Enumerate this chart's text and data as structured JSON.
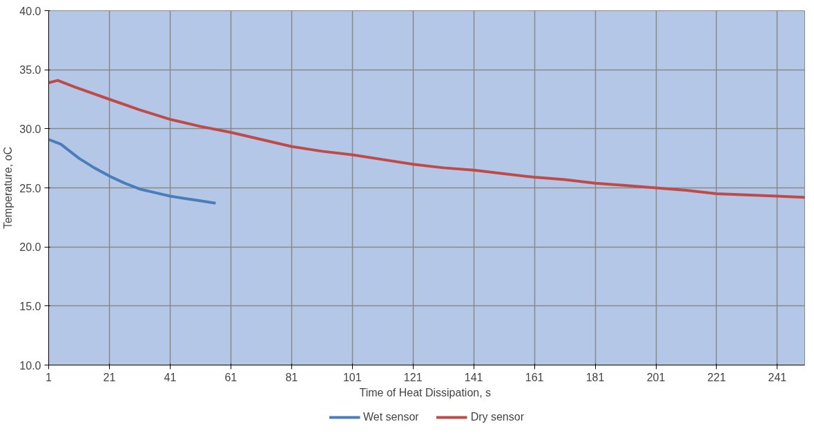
{
  "chart_data": {
    "type": "line",
    "xlabel": "Time of Heat Dissipation,  s",
    "ylabel": "Temperature, oC",
    "xlim": [
      1,
      250
    ],
    "xticks": [
      1,
      21,
      41,
      61,
      81,
      101,
      121,
      141,
      161,
      181,
      201,
      221,
      241
    ],
    "ylim": [
      10,
      40
    ],
    "yticks": [
      {
        "value": 10,
        "label": "10.0"
      },
      {
        "value": 15,
        "label": "15.0"
      },
      {
        "value": 20,
        "label": "20.0"
      },
      {
        "value": 25,
        "label": "25.0"
      },
      {
        "value": 30,
        "label": "30.0"
      },
      {
        "value": 35,
        "label": "35.0"
      },
      {
        "value": 40,
        "label": "40.0"
      }
    ],
    "grid": true,
    "legend": "bottom",
    "marker": "none",
    "line_style": "solid",
    "series": [
      {
        "name": "Wet sensor",
        "color": "#4a7ebb",
        "x": [
          1,
          5,
          11,
          16,
          21,
          26,
          31,
          36,
          41,
          46,
          51,
          56
        ],
        "values": [
          29.1,
          28.7,
          27.5,
          26.7,
          26.0,
          25.4,
          24.9,
          24.6,
          24.3,
          24.1,
          23.9,
          23.7
        ]
      },
      {
        "name": "Dry sensor",
        "color": "#be4b48",
        "x": [
          1,
          4,
          10,
          21,
          31,
          41,
          51,
          61,
          71,
          81,
          91,
          101,
          111,
          121,
          131,
          141,
          151,
          161,
          171,
          181,
          191,
          201,
          211,
          221,
          231,
          241,
          250
        ],
        "values": [
          33.9,
          34.1,
          33.5,
          32.5,
          31.6,
          30.8,
          30.2,
          29.7,
          29.1,
          28.5,
          28.1,
          27.8,
          27.4,
          27.0,
          26.7,
          26.5,
          26.2,
          25.9,
          25.7,
          25.4,
          25.2,
          25.0,
          24.8,
          24.5,
          24.4,
          24.3,
          24.2
        ]
      }
    ]
  }
}
